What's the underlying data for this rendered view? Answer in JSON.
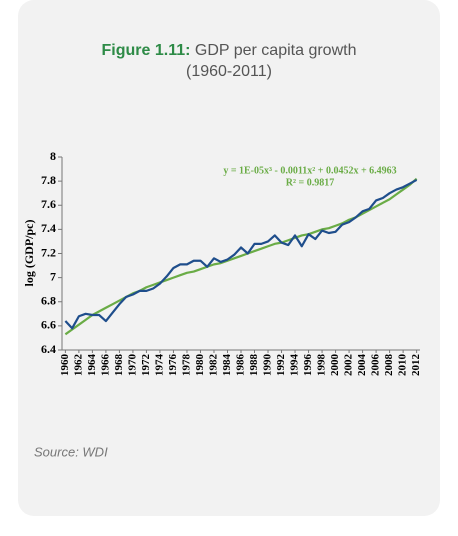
{
  "chart_data": {
    "type": "line",
    "title_prefix": "Figure 1.11:",
    "title": "GDP per capita growth",
    "subtitle": "(1960-2011)",
    "ylabel": "log (GDP/pc)",
    "annotations": [
      "y = 1E-05x³ - 0.0011x² + 0.0452x + 6.4963",
      "R² = 0.9817"
    ],
    "source": "Source: WDI",
    "categories": [
      "1960",
      null,
      "1962",
      null,
      "1964",
      null,
      "1966",
      null,
      "1968",
      null,
      "1970",
      null,
      "1972",
      null,
      "1974",
      null,
      "1976",
      null,
      "1978",
      null,
      "1980",
      null,
      "1982",
      null,
      "1984",
      null,
      "1986",
      null,
      "1988",
      null,
      "1990",
      null,
      "1992",
      null,
      "1994",
      null,
      "1996",
      null,
      "1998",
      null,
      "2000",
      null,
      "2002",
      null,
      "2004",
      null,
      "2006",
      null,
      "2008",
      null,
      "2010",
      null,
      "2012"
    ],
    "series": [
      {
        "color": "#1f4e8c",
        "values": [
          6.64,
          6.58,
          6.68,
          6.7,
          6.69,
          6.69,
          6.64,
          6.71,
          6.78,
          6.84,
          6.86,
          6.89,
          6.89,
          6.91,
          6.95,
          7.01,
          7.08,
          7.11,
          7.11,
          7.14,
          7.14,
          7.09,
          7.16,
          7.13,
          7.15,
          7.19,
          7.25,
          7.2,
          7.28,
          7.28,
          7.3,
          7.35,
          7.29,
          7.27,
          7.35,
          7.26,
          7.36,
          7.32,
          7.39,
          7.37,
          7.38,
          7.44,
          7.46,
          7.5,
          7.55,
          7.57,
          7.64,
          7.66,
          7.7,
          7.73,
          7.75,
          7.78,
          7.81
        ]
      },
      {
        "color": "#6aac46",
        "values": [
          6.53,
          6.57,
          6.61,
          6.65,
          6.69,
          6.72,
          6.75,
          6.78,
          6.81,
          6.84,
          6.87,
          6.89,
          6.92,
          6.94,
          6.96,
          6.98,
          7.0,
          7.02,
          7.04,
          7.05,
          7.07,
          7.09,
          7.11,
          7.12,
          7.14,
          7.16,
          7.18,
          7.2,
          7.22,
          7.24,
          7.26,
          7.28,
          7.29,
          7.31,
          7.33,
          7.35,
          7.36,
          7.38,
          7.4,
          7.41,
          7.43,
          7.45,
          7.48,
          7.5,
          7.53,
          7.56,
          7.59,
          7.62,
          7.65,
          7.69,
          7.73,
          7.77,
          7.82
        ]
      }
    ],
    "ylim": [
      6.4,
      8
    ],
    "yticks": [
      6.4,
      6.6,
      6.8,
      7,
      7.2,
      7.4,
      7.6,
      7.8,
      8
    ]
  }
}
